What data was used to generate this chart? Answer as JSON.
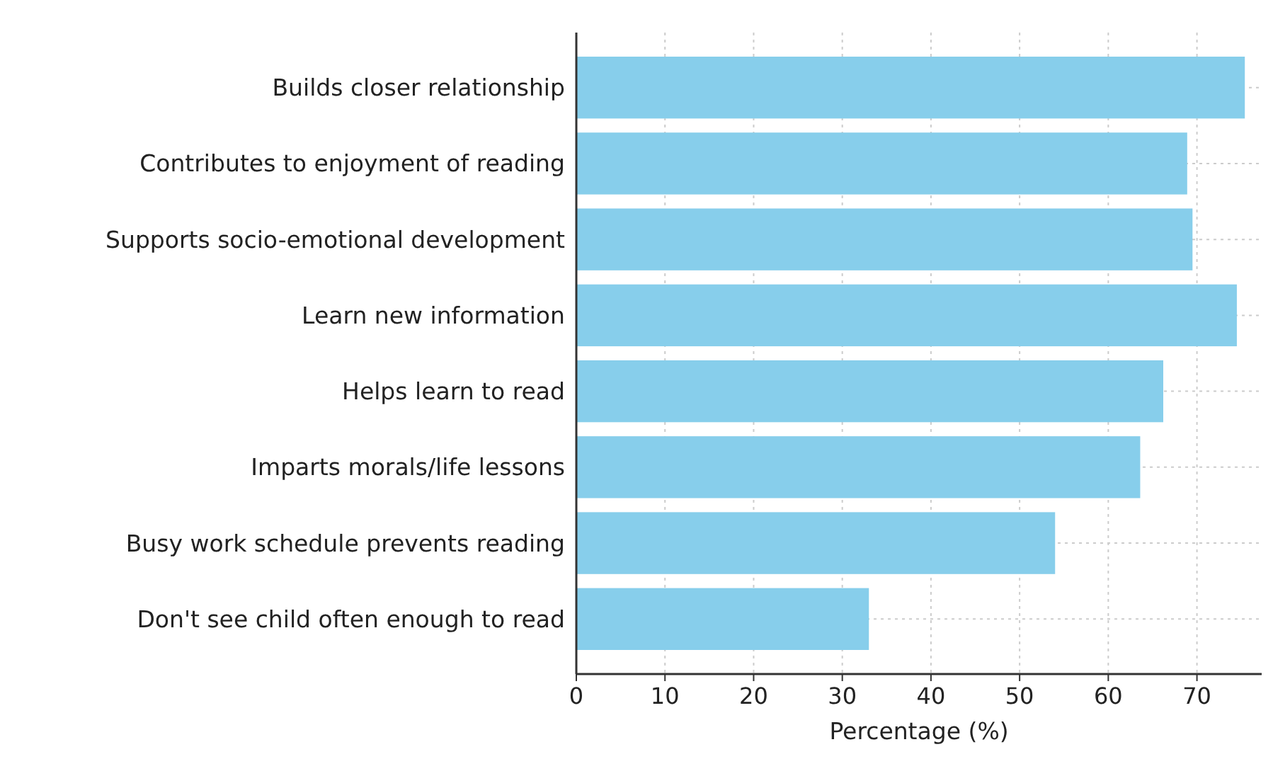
{
  "chart_data": {
    "type": "bar",
    "orientation": "horizontal",
    "xlabel": "Percentage (%)",
    "categories": [
      "Builds closer relationship",
      "Contributes to enjoyment of reading",
      "Supports socio-emotional development",
      "Learn new information",
      "Helps learn to read",
      "Imparts morals/life lessons",
      "Busy work schedule prevents reading",
      "Don't see child often enough to read"
    ],
    "values": [
      75.4,
      68.9,
      69.5,
      74.5,
      66.2,
      63.6,
      54.0,
      33.0
    ],
    "color": "#87ceeb",
    "xlim": [
      0,
      77.3
    ],
    "xticks": [
      0,
      10,
      20,
      30,
      40,
      50,
      60,
      70
    ],
    "grid": true
  }
}
